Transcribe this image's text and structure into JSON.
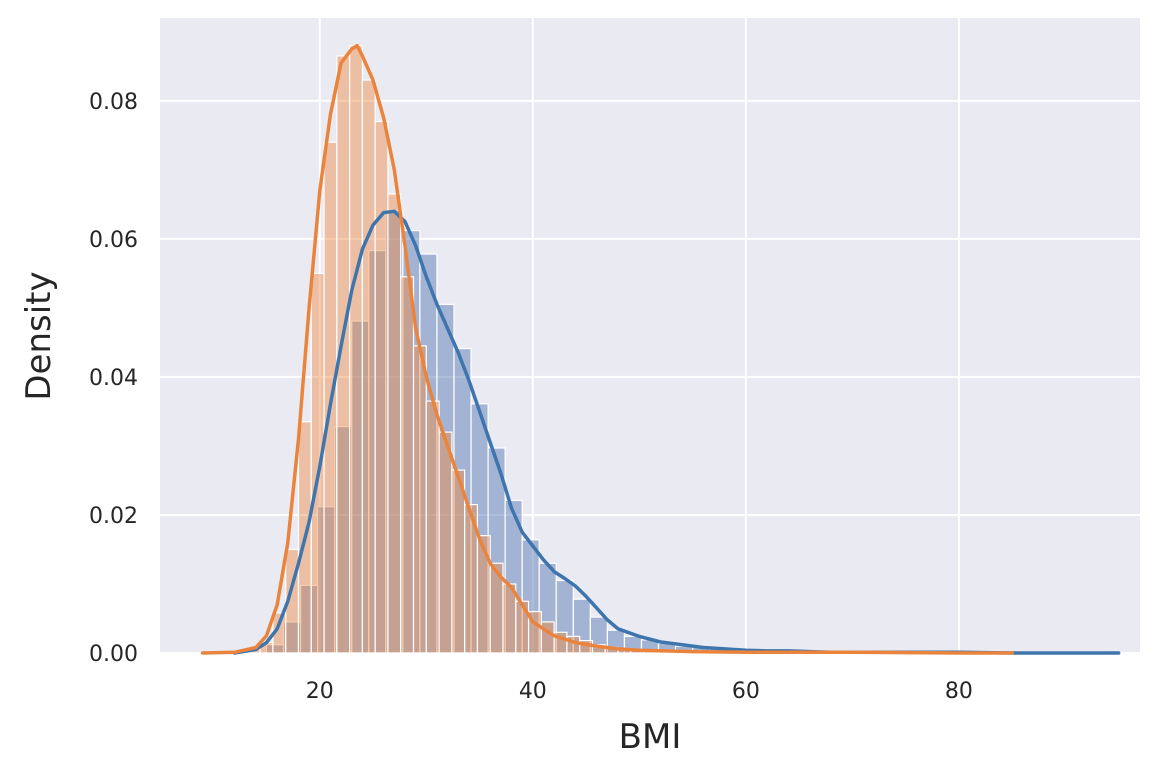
{
  "chart_data": {
    "type": "bar",
    "subtype": "histogram-with-kde",
    "title": "",
    "xlabel": "BMI",
    "ylabel": "Density",
    "xlim": [
      5,
      97
    ],
    "ylim": [
      0,
      0.092
    ],
    "x_ticks": [
      20,
      40,
      60,
      80
    ],
    "y_ticks": [
      0.0,
      0.02,
      0.04,
      0.06,
      0.08
    ],
    "x_tick_labels": [
      "20",
      "40",
      "60",
      "80"
    ],
    "y_tick_labels": [
      "0.00",
      "0.02",
      "0.04",
      "0.06",
      "0.08"
    ],
    "grid": true,
    "legend": "none",
    "series": [
      {
        "color": "#3f75ad",
        "bar_color": "#4c72b0",
        "histogram": {
          "bin_edges": [
            15.0,
            16.6,
            18.2,
            19.8,
            21.4,
            23.0,
            24.6,
            26.2,
            27.8,
            29.4,
            31.0,
            32.6,
            34.2,
            35.8,
            37.4,
            39.0,
            40.6,
            42.2,
            43.8,
            45.4,
            47.0,
            48.6,
            50.2,
            51.8,
            53.4,
            55.0,
            56.6,
            58.2,
            59.8,
            61.4,
            63.0,
            64.6,
            66.2,
            67.8,
            69.4,
            71.0,
            72.6,
            74.2,
            75.8,
            77.4,
            79.0,
            80.6,
            82.2,
            83.8,
            85.4,
            87.0,
            88.6,
            90.2,
            91.8,
            93.4,
            95.0
          ],
          "densities": [
            0.0012,
            0.0045,
            0.0098,
            0.0212,
            0.0328,
            0.0481,
            0.0583,
            0.0641,
            0.0612,
            0.0578,
            0.0505,
            0.0441,
            0.0361,
            0.0297,
            0.0221,
            0.0164,
            0.013,
            0.0105,
            0.0078,
            0.0052,
            0.0033,
            0.0024,
            0.0019,
            0.0014,
            0.001,
            0.0008,
            0.0006,
            0.0005,
            0.0004,
            0.0003,
            0.0002,
            0.0003,
            0.0002,
            0.0001,
            0.0001,
            0.0001,
            0.0001,
            0.0001,
            0.0001,
            0.0001,
            0.0001,
            0.0001,
            0.0001,
            0.0001,
            0.0001,
            0.0001,
            0.0001,
            0.0001,
            0.0001,
            0.0001
          ]
        },
        "kde": {
          "x": [
            12,
            14,
            15,
            16,
            17,
            18,
            19,
            20,
            21,
            22,
            23,
            24,
            25,
            26,
            27,
            28,
            29,
            30,
            31,
            32,
            33,
            34,
            35,
            36,
            37,
            38,
            39,
            40,
            41,
            42,
            43,
            44,
            45,
            46,
            47,
            48,
            50,
            52,
            54,
            56,
            58,
            60,
            62,
            64,
            66,
            68,
            70,
            75,
            80,
            85,
            90,
            95
          ],
          "y": [
            0.0,
            0.0005,
            0.0015,
            0.0035,
            0.0075,
            0.013,
            0.019,
            0.027,
            0.036,
            0.0445,
            0.0525,
            0.0585,
            0.062,
            0.0638,
            0.064,
            0.0625,
            0.059,
            0.0545,
            0.0505,
            0.047,
            0.0435,
            0.0395,
            0.035,
            0.0305,
            0.026,
            0.021,
            0.0175,
            0.0155,
            0.0135,
            0.0118,
            0.0108,
            0.0097,
            0.0082,
            0.0065,
            0.0048,
            0.0035,
            0.0024,
            0.0016,
            0.0012,
            0.0008,
            0.0006,
            0.0004,
            0.0003,
            0.0003,
            0.0002,
            0.0001,
            0.0001,
            0.0001,
            0.0001,
            0.0,
            0.0,
            0.0
          ]
        }
      },
      {
        "color": "#ea843d",
        "bar_color": "#f08c45",
        "histogram": {
          "bin_edges": [
            12.0,
            13.2,
            14.4,
            15.6,
            16.8,
            18.0,
            19.2,
            20.4,
            21.6,
            22.8,
            24.0,
            25.2,
            26.4,
            27.6,
            28.8,
            30.0,
            31.2,
            32.4,
            33.6,
            34.8,
            36.0,
            37.2,
            38.4,
            39.6,
            40.8,
            42.0,
            43.2,
            44.4,
            45.6,
            46.8,
            48.0,
            49.2,
            50.4,
            51.6,
            52.8,
            54.0,
            55.2,
            56.4,
            57.6,
            58.8,
            60.0
          ],
          "densities": [
            0.0001,
            0.0005,
            0.0015,
            0.0058,
            0.015,
            0.0335,
            0.055,
            0.074,
            0.0865,
            0.088,
            0.083,
            0.077,
            0.0665,
            0.0545,
            0.0445,
            0.0365,
            0.032,
            0.0265,
            0.0215,
            0.017,
            0.013,
            0.01,
            0.0075,
            0.006,
            0.0045,
            0.003,
            0.0024,
            0.0018,
            0.0012,
            0.0008,
            0.0005,
            0.0004,
            0.0003,
            0.0002,
            0.0002,
            0.0001,
            0.0001,
            0.0001,
            0.0001,
            0.0001
          ]
        },
        "kde": {
          "x": [
            9,
            12,
            14,
            15,
            16,
            17,
            18,
            19,
            20,
            21,
            22,
            23,
            23.5,
            24,
            25,
            26,
            27,
            28,
            29,
            30,
            31,
            32,
            33,
            34,
            35,
            36,
            37,
            38,
            39,
            40,
            42,
            44,
            46,
            48,
            50,
            55,
            60,
            70,
            80,
            85
          ],
          "y": [
            0.0,
            0.0001,
            0.0008,
            0.0025,
            0.007,
            0.016,
            0.031,
            0.05,
            0.067,
            0.078,
            0.0855,
            0.0875,
            0.088,
            0.0865,
            0.083,
            0.0775,
            0.07,
            0.059,
            0.047,
            0.04,
            0.0345,
            0.03,
            0.0255,
            0.021,
            0.0165,
            0.013,
            0.011,
            0.0095,
            0.007,
            0.0045,
            0.0025,
            0.0015,
            0.001,
            0.0006,
            0.0004,
            0.0002,
            0.0001,
            0.0001,
            0.0,
            0.0
          ]
        }
      }
    ]
  }
}
